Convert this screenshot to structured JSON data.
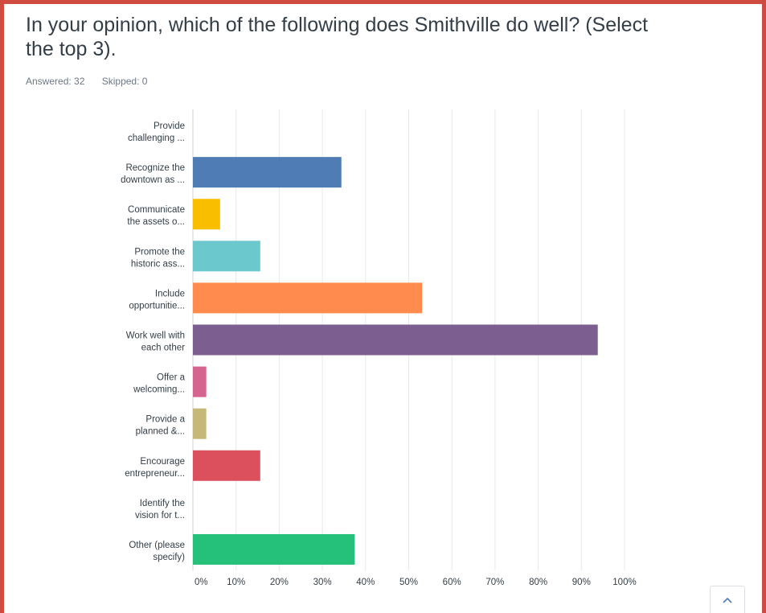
{
  "question": {
    "title_line1": "In your opinion, which of the following does Smithville do well?  (Select",
    "title_line2": "the top 3)."
  },
  "stats": {
    "answered": "Answered: 32",
    "skipped": "Skipped: 0"
  },
  "colors": {
    "frame": "#cf4b3f",
    "grid": "#e6e8eb"
  },
  "chart_data": {
    "type": "bar",
    "orientation": "horizontal",
    "categories": [
      [
        "Provide",
        "challenging ..."
      ],
      [
        "Recognize the",
        "downtown as ..."
      ],
      [
        "Communicate",
        "the assets o..."
      ],
      [
        "Promote the",
        "historic ass..."
      ],
      [
        "Include",
        "opportunitie..."
      ],
      [
        "Work well with",
        "each other"
      ],
      [
        "Offer a",
        "welcoming..."
      ],
      [
        "Provide a",
        "planned &..."
      ],
      [
        "Encourage",
        "entrepreneur..."
      ],
      [
        "Identify the",
        "vision for t..."
      ],
      [
        "Other (please",
        "specify)"
      ]
    ],
    "values": [
      0,
      34.4,
      6.3,
      15.6,
      53.1,
      93.8,
      3.1,
      3.1,
      15.6,
      0,
      37.5
    ],
    "colors": [
      "#507cb6",
      "#507cb6",
      "#f9be00",
      "#6bc8cd",
      "#ff8b4f",
      "#7d5e90",
      "#d5658e",
      "#c6b879",
      "#dc505e",
      "#507cb6",
      "#25c17a"
    ],
    "xticks": [
      "0%",
      "10%",
      "20%",
      "30%",
      "40%",
      "50%",
      "60%",
      "70%",
      "80%",
      "90%",
      "100%"
    ],
    "xlim": [
      0,
      100
    ],
    "grid": true,
    "legend": "none"
  }
}
